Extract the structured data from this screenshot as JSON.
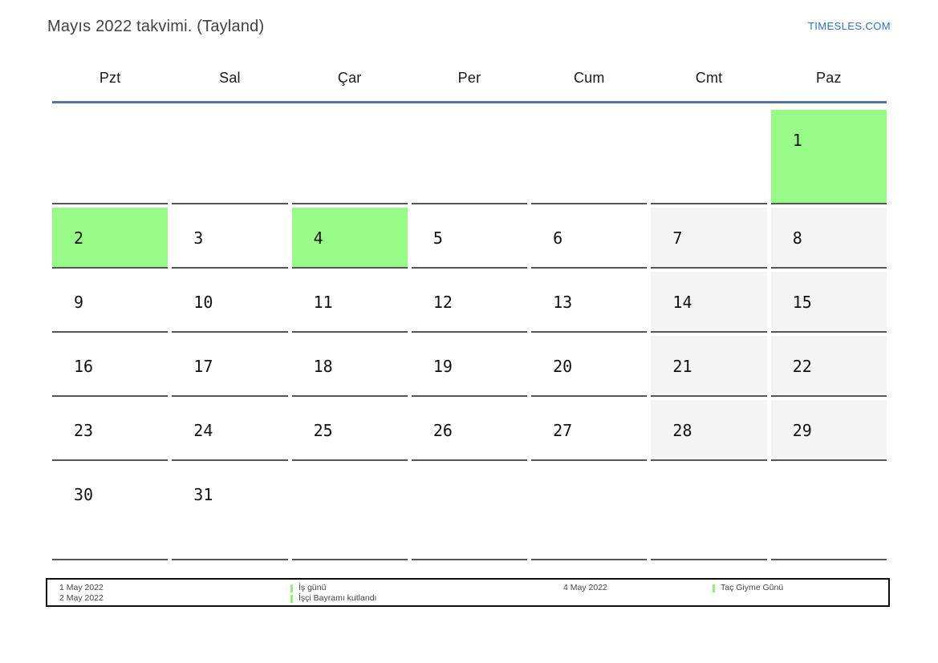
{
  "page": {
    "title": "Mayıs 2022 takvimi. (Tayland)",
    "site_link": "TIMESLES.COM"
  },
  "calendar": {
    "weekdays": [
      "Pzt",
      "Sal",
      "Çar",
      "Per",
      "Cum",
      "Cmt",
      "Paz"
    ],
    "weeks": [
      [
        "",
        "",
        "",
        "",
        "",
        "",
        "1"
      ],
      [
        "2",
        "3",
        "4",
        "5",
        "6",
        "7",
        "8"
      ],
      [
        "9",
        "10",
        "11",
        "12",
        "13",
        "14",
        "15"
      ],
      [
        "16",
        "17",
        "18",
        "19",
        "20",
        "21",
        "22"
      ],
      [
        "23",
        "24",
        "25",
        "26",
        "27",
        "28",
        "29"
      ],
      [
        "30",
        "31",
        "",
        "",
        "",
        "",
        ""
      ]
    ],
    "highlighted_days": [
      "1",
      "2",
      "4"
    ],
    "weekend_shaded_days": [
      "7",
      "8",
      "14",
      "15",
      "21",
      "22",
      "28",
      "29"
    ]
  },
  "legend": {
    "group1": {
      "date1": "1 May 2022",
      "date2": "2 May 2022",
      "label1": "İş günü",
      "label2": "İşçi Bayramı kutlandı"
    },
    "group2": {
      "date1": "4 May 2022",
      "label1": "Taç Giyme Günü"
    }
  },
  "colors": {
    "holiday_green": "#98fa87",
    "legend_marker_green": "#8cf278",
    "weekend_gray": "#f4f4f4",
    "header_line_blue": "#54779e",
    "link_blue": "#3272b5"
  }
}
